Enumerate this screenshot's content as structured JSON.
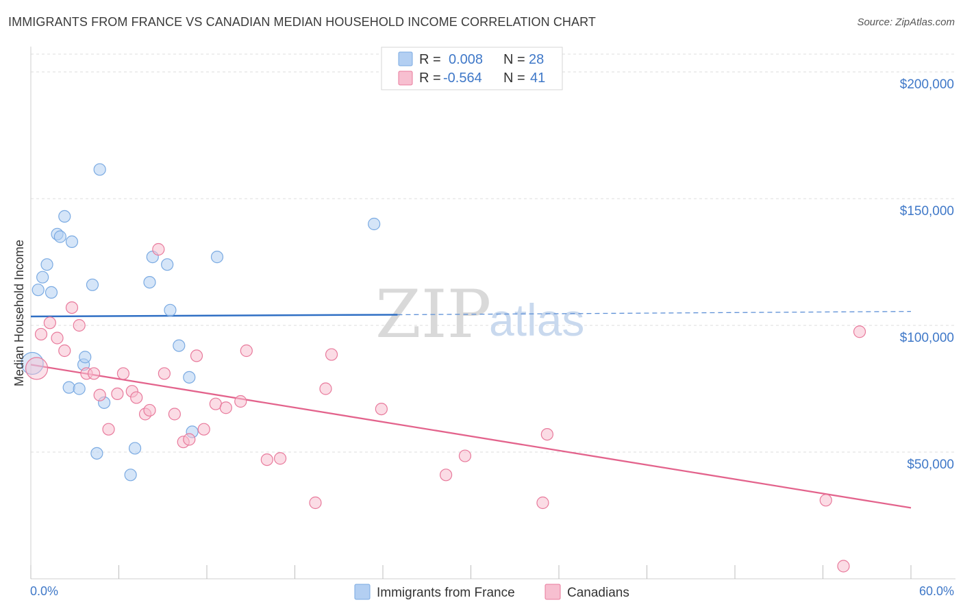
{
  "title": "IMMIGRANTS FROM FRANCE VS CANADIAN MEDIAN HOUSEHOLD INCOME CORRELATION CHART",
  "source": "Source: ZipAtlas.com",
  "watermark": {
    "zip": "ZIP",
    "atlas": "atlas"
  },
  "legend": {
    "rows": [
      {
        "r_label": "R =",
        "r_value": "0.008",
        "n_label": "N =",
        "n_value": "28",
        "color": "#b3cff2"
      },
      {
        "r_label": "R =",
        "r_value": "-0.564",
        "n_label": "N =",
        "n_value": "41",
        "color": "#f7bfd0"
      }
    ]
  },
  "chart_data": {
    "type": "scatter",
    "ylabel": "Median Household Income",
    "xlim": [
      0,
      60
    ],
    "ylim": [
      0,
      210000
    ],
    "x_tick_labels": [
      "0.0%",
      "60.0%"
    ],
    "y_ticks": [
      {
        "value": 50000,
        "label": "$50,000"
      },
      {
        "value": 100000,
        "label": "$100,000"
      },
      {
        "value": 150000,
        "label": "$150,000"
      },
      {
        "value": 200000,
        "label": "$200,000"
      }
    ],
    "grid": true,
    "legend_position": "top-center",
    "series": [
      {
        "name": "Immigrants from France",
        "color": "#7aaae2",
        "fill": "#b3cff2",
        "trend": {
          "x0": 0,
          "y0": 103500,
          "x1": 25,
          "y1": 104200,
          "x_dash_end": 60,
          "y_dash_end": 105500
        },
        "points": [
          [
            0.1,
            85000
          ],
          [
            0.5,
            114000
          ],
          [
            0.8,
            119000
          ],
          [
            1.1,
            124000
          ],
          [
            1.4,
            113000
          ],
          [
            1.8,
            136000
          ],
          [
            2.0,
            135000
          ],
          [
            2.3,
            143000
          ],
          [
            2.8,
            133000
          ],
          [
            2.6,
            75500
          ],
          [
            3.3,
            75000
          ],
          [
            3.6,
            84500
          ],
          [
            3.7,
            87500
          ],
          [
            4.2,
            116000
          ],
          [
            4.5,
            49500
          ],
          [
            4.7,
            161500
          ],
          [
            5.0,
            69500
          ],
          [
            6.8,
            41000
          ],
          [
            7.1,
            51500
          ],
          [
            8.1,
            117000
          ],
          [
            8.3,
            127000
          ],
          [
            9.3,
            124000
          ],
          [
            9.5,
            106000
          ],
          [
            10.1,
            92000
          ],
          [
            10.8,
            79500
          ],
          [
            11.0,
            58000
          ],
          [
            12.7,
            127000
          ],
          [
            23.4,
            140000
          ]
        ]
      },
      {
        "name": "Canadians",
        "color": "#e8799b",
        "fill": "#f7bfd0",
        "trend": {
          "x0": 0,
          "y0": 84500,
          "x1": 60,
          "y1": 28000
        },
        "points": [
          [
            0.4,
            83000
          ],
          [
            0.7,
            96500
          ],
          [
            1.3,
            101000
          ],
          [
            1.8,
            95000
          ],
          [
            2.3,
            90000
          ],
          [
            2.8,
            107000
          ],
          [
            3.3,
            100000
          ],
          [
            3.8,
            81000
          ],
          [
            4.3,
            81000
          ],
          [
            4.7,
            72500
          ],
          [
            5.3,
            59000
          ],
          [
            5.9,
            73000
          ],
          [
            6.3,
            81000
          ],
          [
            6.9,
            74000
          ],
          [
            7.2,
            71500
          ],
          [
            7.8,
            65000
          ],
          [
            8.1,
            66500
          ],
          [
            8.7,
            130000
          ],
          [
            9.1,
            81000
          ],
          [
            9.8,
            65000
          ],
          [
            10.4,
            54000
          ],
          [
            10.8,
            55000
          ],
          [
            11.3,
            88000
          ],
          [
            11.8,
            59000
          ],
          [
            12.6,
            69000
          ],
          [
            13.3,
            67500
          ],
          [
            14.3,
            70000
          ],
          [
            14.7,
            90000
          ],
          [
            16.1,
            47000
          ],
          [
            17.0,
            47500
          ],
          [
            19.4,
            30000
          ],
          [
            20.1,
            75000
          ],
          [
            20.5,
            88500
          ],
          [
            23.9,
            67000
          ],
          [
            28.3,
            41000
          ],
          [
            29.6,
            48500
          ],
          [
            34.9,
            30000
          ],
          [
            35.2,
            57000
          ],
          [
            54.2,
            31000
          ],
          [
            55.4,
            5000
          ],
          [
            56.5,
            97500
          ]
        ]
      }
    ]
  }
}
